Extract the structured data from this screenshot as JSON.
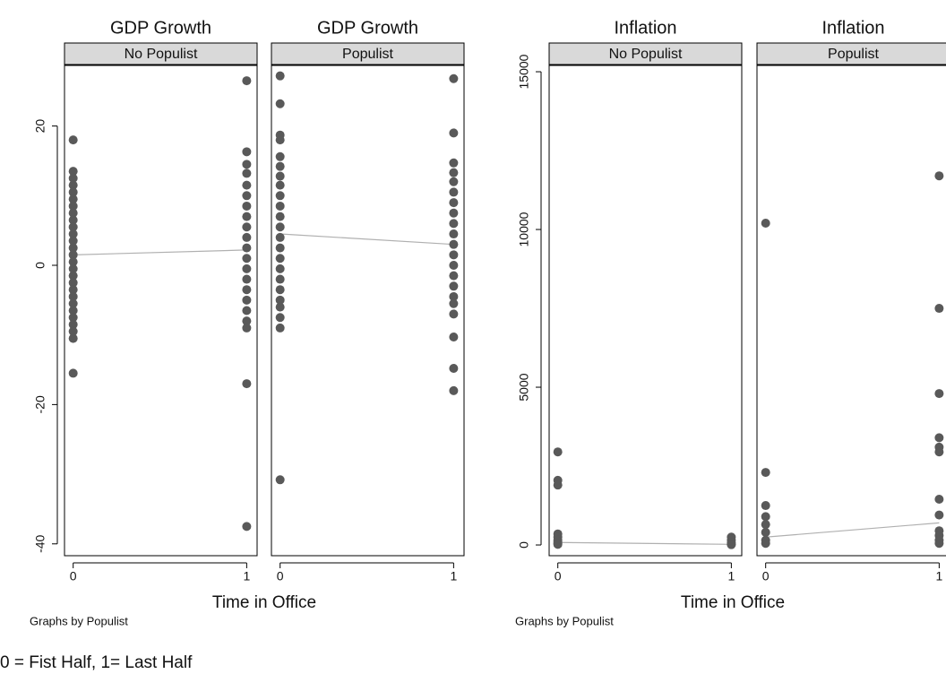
{
  "chart_data": [
    {
      "type": "scatter",
      "xlabel": "Time in Office",
      "note": "Graphs by Populist",
      "ylim": [
        -41.7,
        28.7
      ],
      "yticks": [
        -40,
        -20,
        0,
        20
      ],
      "xlim": [
        -0.05,
        1.06
      ],
      "xticks": [
        0,
        1
      ],
      "color": "#595959",
      "fit_color": "#b0b0b0",
      "panels": [
        {
          "title": "GDP Growth",
          "subtitle": "No Populist",
          "x": [
            0,
            0,
            0,
            0,
            0,
            0,
            0,
            0,
            0,
            0,
            0,
            0,
            0,
            0,
            0,
            0,
            0,
            0,
            0,
            0,
            0,
            0,
            0,
            0,
            0,
            0,
            0,
            1,
            1,
            1,
            1,
            1,
            1,
            1,
            1,
            1,
            1,
            1,
            1,
            1,
            1,
            1,
            1,
            1,
            1,
            1,
            1,
            1
          ],
          "values": [
            18,
            13.5,
            12.5,
            11.5,
            10.5,
            9.5,
            8.5,
            7.5,
            6.5,
            5.5,
            4.5,
            3.5,
            2.5,
            1.5,
            0.5,
            -0.5,
            -1.5,
            -2.5,
            -3.5,
            -4.5,
            -5.5,
            -6.5,
            -7.5,
            -8.5,
            -9.5,
            -10.5,
            -15.5,
            26.5,
            16.3,
            14.5,
            13.2,
            11.5,
            10,
            8.5,
            7,
            5.5,
            4,
            2.5,
            1,
            -0.5,
            -2,
            -3.5,
            -5,
            -6.5,
            -8,
            -9,
            -17,
            -37.5
          ],
          "fit_x": [
            0,
            1
          ],
          "fit_values": [
            1.5,
            2.2
          ]
        },
        {
          "title": "GDP Growth",
          "subtitle": "Populist",
          "x": [
            0,
            0,
            0,
            0,
            0,
            0,
            0,
            0,
            0,
            0,
            0,
            0,
            0,
            0,
            0,
            0,
            0,
            0,
            0,
            0,
            0,
            0,
            0,
            1,
            1,
            1,
            1,
            1,
            1,
            1,
            1,
            1,
            1,
            1,
            1,
            1,
            1,
            1,
            1,
            1,
            1,
            1,
            1,
            1
          ],
          "values": [
            27.2,
            23.2,
            18.7,
            18,
            15.6,
            14.2,
            12.8,
            11.5,
            10,
            8.5,
            7,
            5.5,
            4,
            2.5,
            1,
            -0.5,
            -2,
            -3.5,
            -5,
            -6,
            -7.5,
            -9,
            -30.8,
            26.8,
            19,
            14.7,
            13.3,
            12,
            10.5,
            9,
            7.5,
            6,
            4.5,
            3,
            1.5,
            0,
            -1.5,
            -3,
            -4.5,
            -5.5,
            -7,
            -10.3,
            -14.8,
            -18
          ],
          "fit_x": [
            0,
            1
          ],
          "fit_values": [
            4.5,
            3
          ]
        }
      ]
    },
    {
      "type": "scatter",
      "xlabel": "Time in Office",
      "note": "Graphs by Populist",
      "ylim": [
        -340,
        15200
      ],
      "yticks": [
        0,
        5000,
        10000,
        15000
      ],
      "xlim": [
        -0.05,
        1.06
      ],
      "xticks": [
        0,
        1
      ],
      "color": "#595959",
      "fit_color": "#b0b0b0",
      "panels": [
        {
          "title": "Inflation",
          "subtitle": "No Populist",
          "x": [
            0,
            0,
            0,
            0,
            0,
            0,
            0,
            0,
            0,
            1,
            1,
            1,
            1,
            1
          ],
          "values": [
            2950,
            2050,
            1900,
            350,
            250,
            150,
            100,
            50,
            20,
            250,
            150,
            80,
            30,
            10
          ],
          "fit_x": [
            0,
            1
          ],
          "fit_values": [
            80,
            20
          ]
        },
        {
          "title": "Inflation",
          "subtitle": "Populist",
          "x": [
            0,
            0,
            0,
            0,
            0,
            0,
            0,
            0,
            1,
            1,
            1,
            1,
            1,
            1,
            1,
            1,
            1,
            1,
            1,
            1
          ],
          "values": [
            10200,
            2300,
            1250,
            900,
            650,
            400,
            150,
            50,
            11700,
            7500,
            4800,
            3400,
            3100,
            2950,
            1450,
            950,
            450,
            300,
            150,
            50
          ],
          "fit_x": [
            0,
            1
          ],
          "fit_values": [
            250,
            700
          ]
        }
      ]
    }
  ],
  "footnote": "0 = Fist Half, 1= Last Half"
}
